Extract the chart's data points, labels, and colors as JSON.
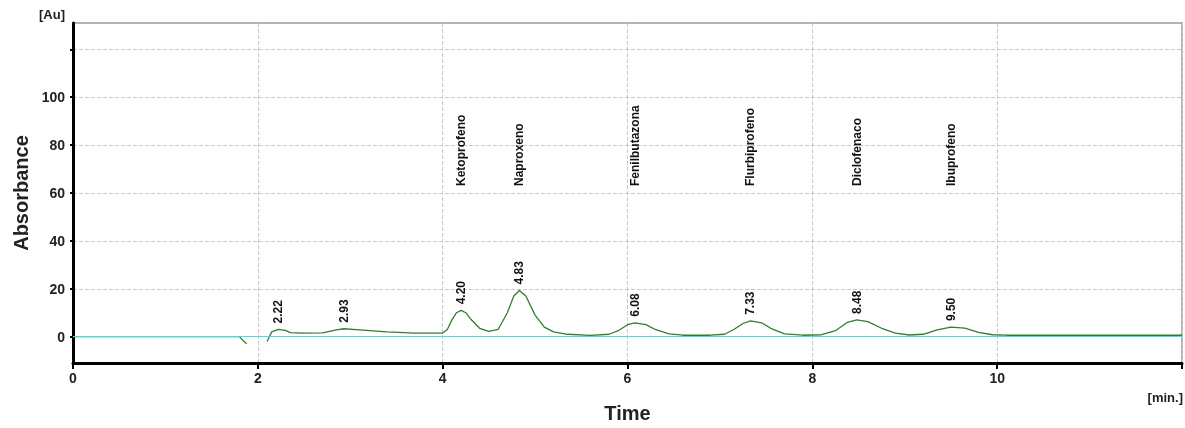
{
  "chart_data": {
    "type": "line",
    "xlabel": "Time",
    "ylabel": "Absorbance",
    "x": [
      0,
      1.8,
      1.85,
      1.88,
      1.9,
      2.05,
      2.1,
      2.15,
      2.22,
      2.3,
      2.35,
      2.5,
      2.7,
      2.85,
      2.93,
      3.1,
      3.4,
      3.7,
      4.0,
      4.05,
      4.1,
      4.15,
      4.2,
      4.25,
      4.3,
      4.4,
      4.5,
      4.6,
      4.7,
      4.77,
      4.83,
      4.9,
      5.0,
      5.1,
      5.2,
      5.35,
      5.6,
      5.8,
      5.9,
      6.0,
      6.08,
      6.2,
      6.3,
      6.45,
      6.6,
      6.9,
      7.05,
      7.15,
      7.25,
      7.33,
      7.45,
      7.55,
      7.7,
      7.9,
      8.1,
      8.25,
      8.38,
      8.48,
      8.6,
      8.75,
      8.9,
      9.05,
      9.2,
      9.35,
      9.5,
      9.65,
      9.8,
      9.95,
      10.1,
      12
    ],
    "series": [
      {
        "color": "#2f7f2f",
        "values": [
          0,
          0,
          -2,
          -3,
          null,
          null,
          -2,
          2,
          3.0,
          2.6,
          1.7,
          1.5,
          1.6,
          2.8,
          3.3,
          2.8,
          2.0,
          1.5,
          1.5,
          3,
          7,
          10,
          11.0,
          10,
          7.5,
          3.5,
          2.2,
          3,
          10,
          17,
          19.3,
          17,
          9,
          4,
          2,
          1,
          0.5,
          1.0,
          2.5,
          5,
          5.8,
          5,
          3,
          1.2,
          0.6,
          0.6,
          1,
          3,
          5.5,
          6.6,
          5.8,
          3.5,
          1.2,
          0.6,
          0.8,
          2.5,
          6,
          7.0,
          6.3,
          3.5,
          1.5,
          0.7,
          1.0,
          2.8,
          4.0,
          3.6,
          1.8,
          0.8,
          0.6,
          0.6
        ]
      }
    ],
    "xlim": [
      0,
      12
    ],
    "xticks": [
      0,
      2,
      4,
      6,
      8,
      10,
      {
        "value": 12,
        "label": null
      }
    ],
    "ylim": [
      -11,
      131
    ],
    "yticks": [
      0,
      20,
      40,
      60,
      80,
      100,
      {
        "value": 120,
        "label": null
      }
    ],
    "grid": true,
    "marker": "none",
    "line_style": "solid",
    "ref_lines": [
      {
        "axis": "y",
        "value": 0,
        "color": "#40e0e0"
      }
    ],
    "annotations": [
      "[Au]",
      "[min.]",
      {
        "text": "2.22",
        "x": 2.22,
        "y": 3.0
      },
      {
        "text": "2.93",
        "x": 2.93,
        "y": 3.3
      },
      {
        "text": "4.20",
        "x": 4.2,
        "y": 11.0
      },
      {
        "text": "4.83",
        "x": 4.83,
        "y": 19.3
      },
      {
        "text": "6.08",
        "x": 6.08,
        "y": 5.8
      },
      {
        "text": "7.33",
        "x": 7.33,
        "y": 6.6
      },
      {
        "text": "8.48",
        "x": 8.48,
        "y": 7.0
      },
      {
        "text": "9.50",
        "x": 9.5,
        "y": 4.0
      },
      "Ketoprofeno",
      "Naproxeno",
      "Fenilbutazona",
      "Flurbiprofeno",
      "Diclofenaco",
      "Ibuprofeno"
    ]
  }
}
